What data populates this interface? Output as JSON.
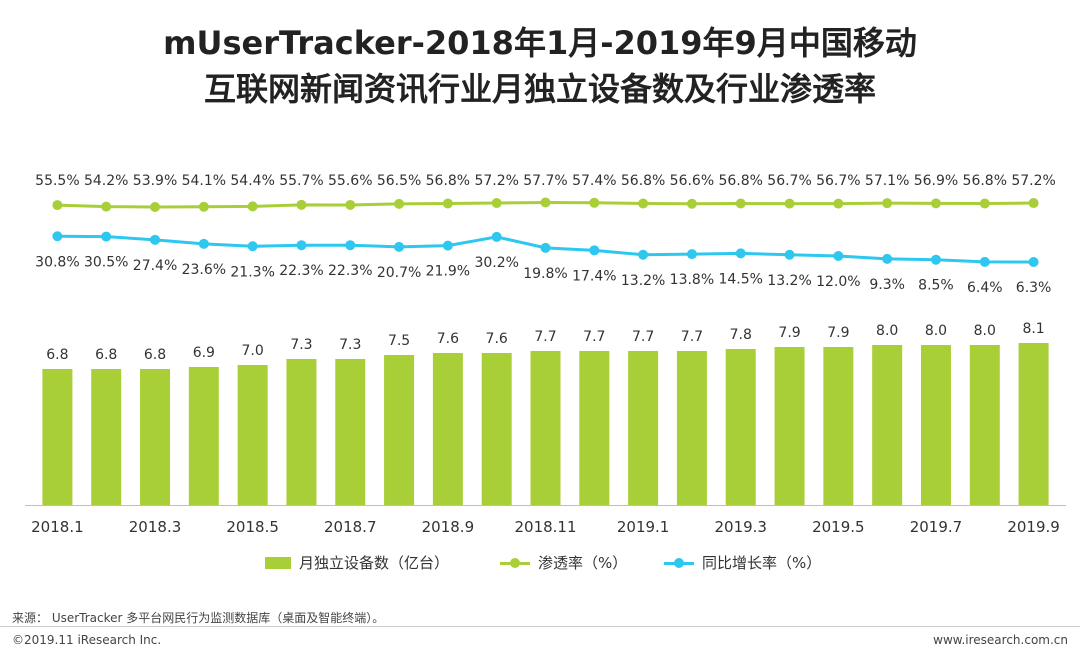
{
  "title": {
    "line1": "mUserTracker-2018年1月-2019年9月中国移动",
    "line2": "互联网新闻资讯行业月独立设备数及行业渗透率"
  },
  "chart_data": {
    "type": "bar",
    "categories": [
      "2018.1",
      "2018.2",
      "2018.3",
      "2018.4",
      "2018.5",
      "2018.6",
      "2018.7",
      "2018.8",
      "2018.9",
      "2018.10",
      "2018.11",
      "2018.12",
      "2019.1",
      "2019.2",
      "2019.3",
      "2019.4",
      "2019.5",
      "2019.6",
      "2019.7",
      "2019.8",
      "2019.9"
    ],
    "tick_labels": [
      "2018.1",
      "2018.3",
      "2018.5",
      "2018.7",
      "2018.9",
      "2018.11",
      "2019.1",
      "2019.3",
      "2019.5",
      "2019.7",
      "2019.9"
    ],
    "series": [
      {
        "name": "月独立设备数（亿台）",
        "type": "bar",
        "color": "#a8cf38",
        "values": [
          6.8,
          6.8,
          6.8,
          6.9,
          7.0,
          7.3,
          7.3,
          7.5,
          7.6,
          7.6,
          7.7,
          7.7,
          7.7,
          7.7,
          7.8,
          7.9,
          7.9,
          8.0,
          8.0,
          8.0,
          8.1
        ],
        "labels": [
          "6.8",
          "6.8",
          "6.8",
          "6.9",
          "7.0",
          "7.3",
          "7.3",
          "7.5",
          "7.6",
          "7.6",
          "7.7",
          "7.7",
          "7.7",
          "7.7",
          "7.8",
          "7.9",
          "7.9",
          "8.0",
          "8.0",
          "8.0",
          "8.1"
        ]
      },
      {
        "name": "渗透率（%）",
        "type": "line",
        "color": "#a8cf38",
        "values": [
          55.5,
          54.2,
          53.9,
          54.1,
          54.4,
          55.7,
          55.6,
          56.5,
          56.8,
          57.2,
          57.7,
          57.4,
          56.8,
          56.6,
          56.8,
          56.7,
          56.7,
          57.1,
          56.9,
          56.8,
          57.2
        ],
        "labels": [
          "55.5%",
          "54.2%",
          "53.9%",
          "54.1%",
          "54.4%",
          "55.7%",
          "55.6%",
          "56.5%",
          "56.8%",
          "57.2%",
          "57.7%",
          "57.4%",
          "56.8%",
          "56.6%",
          "56.8%",
          "56.7%",
          "56.7%",
          "57.1%",
          "56.9%",
          "56.8%",
          "57.2%"
        ]
      },
      {
        "name": "同比增长率（%）",
        "type": "line",
        "color": "#2ec7ef",
        "values": [
          30.8,
          30.5,
          27.4,
          23.6,
          21.3,
          22.3,
          22.3,
          20.7,
          21.9,
          30.2,
          19.8,
          17.4,
          13.2,
          13.8,
          14.5,
          13.2,
          12.0,
          9.3,
          8.5,
          6.4,
          6.3
        ],
        "labels": [
          "30.8%",
          "30.5%",
          "27.4%",
          "23.6%",
          "21.3%",
          "22.3%",
          "22.3%",
          "20.7%",
          "21.9%",
          "30.2%",
          "19.8%",
          "17.4%",
          "13.2%",
          "13.8%",
          "14.5%",
          "13.2%",
          "12.0%",
          "9.3%",
          "8.5%",
          "6.4%",
          "6.3%"
        ]
      }
    ],
    "title": "mUserTracker-2018年1月-2019年9月中国移动互联网新闻资讯行业月独立设备数及行业渗透率",
    "xlabel": "",
    "ylabel": "",
    "legend_position": "bottom",
    "grid": false
  },
  "legend": {
    "bar_label": "月独立设备数（亿台）",
    "pen_label": "渗透率（%）",
    "growth_label": "同比增长率（%）"
  },
  "footer": {
    "source": "来源： UserTracker 多平台网民行为监测数据库（桌面及智能终端）。",
    "copyright": "©2019.11 iResearch Inc.",
    "website": "www.iresearch.com.cn"
  },
  "colors": {
    "bar": "#a8cf38",
    "penetration": "#a8cf38",
    "growth": "#2ec7ef",
    "axis": "#bfbfbf"
  }
}
